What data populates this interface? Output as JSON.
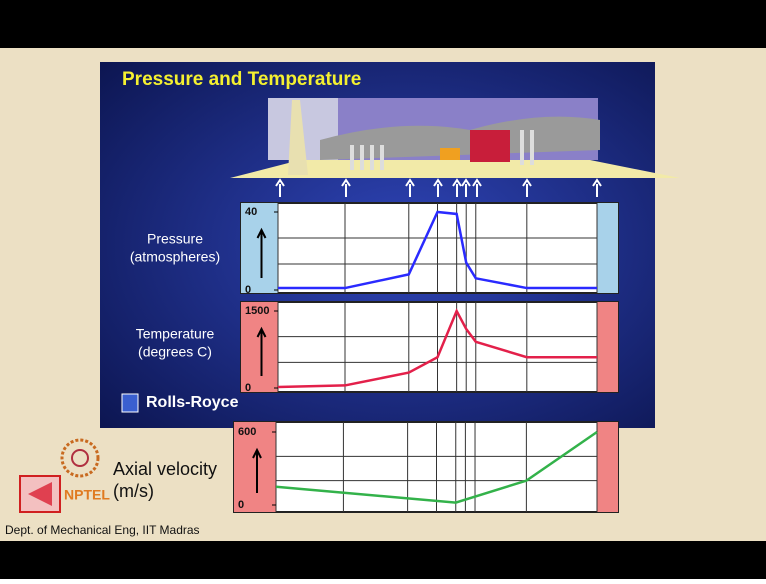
{
  "slide": {
    "title": "Pressure and Temperature",
    "brand": "Rolls-Royce",
    "footer": "Dept. of Mechanical Eng, IIT Madras",
    "logo": "NPTEL"
  },
  "chart_data": [
    {
      "type": "line",
      "ylabel": [
        "Pressure",
        "(atmospheres)"
      ],
      "x": [
        0,
        21,
        41,
        50,
        56,
        59,
        62,
        78,
        100
      ],
      "xlim": [
        0,
        100
      ],
      "values": [
        1,
        1,
        8,
        40,
        39,
        14,
        6,
        1,
        1
      ],
      "color": "#2a2aff",
      "panel_color": "#a8d2ea",
      "ylim": [
        0,
        40
      ],
      "yticks": [
        0,
        40
      ]
    },
    {
      "type": "line",
      "ylabel": [
        "Temperature",
        "(degrees C)"
      ],
      "x": [
        0,
        21,
        41,
        50,
        56,
        59,
        62,
        78,
        100
      ],
      "xlim": [
        0,
        100
      ],
      "values": [
        20,
        50,
        300,
        600,
        1500,
        1150,
        900,
        600,
        600
      ],
      "color": "#e3204a",
      "panel_color": "#f08484",
      "ylim": [
        0,
        1500
      ],
      "yticks": [
        0,
        1500
      ]
    },
    {
      "type": "line",
      "ylabel": [
        "Axial velocity",
        "(m/s)"
      ],
      "x": [
        0,
        56,
        78,
        100
      ],
      "xlim": [
        0,
        100
      ],
      "values": [
        150,
        20,
        200,
        600
      ],
      "color": "#33b24a",
      "panel_color": "#f08484",
      "ylim": [
        0,
        600
      ],
      "yticks": [
        0,
        600
      ]
    }
  ]
}
